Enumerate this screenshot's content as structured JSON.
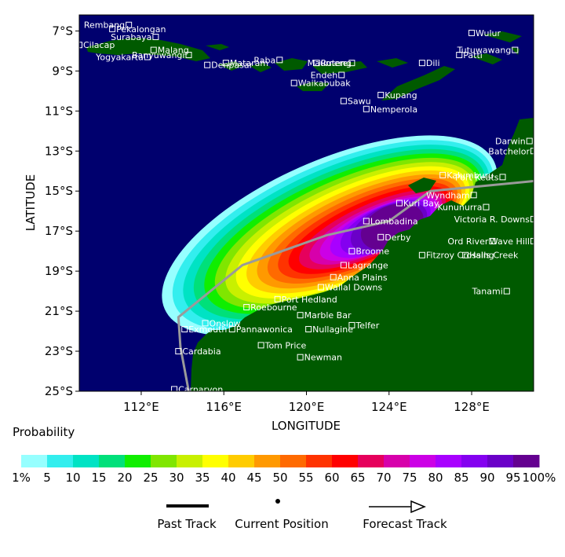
{
  "map": {
    "x_axis_title": "LONGITUDE",
    "y_axis_title": "LATITUDE",
    "lon_range": [
      109,
      131
    ],
    "lat_range": [
      -25,
      -6.2
    ],
    "lon_ticks": [
      {
        "value": 112,
        "label": "112°E"
      },
      {
        "value": 116,
        "label": "116°E"
      },
      {
        "value": 120,
        "label": "120°E"
      },
      {
        "value": 124,
        "label": "124°E"
      },
      {
        "value": 128,
        "label": "128°E"
      }
    ],
    "lat_ticks": [
      {
        "value": -7,
        "label": "7°S"
      },
      {
        "value": -9,
        "label": "9°S"
      },
      {
        "value": -11,
        "label": "11°S"
      },
      {
        "value": -13,
        "label": "13°S"
      },
      {
        "value": -15,
        "label": "15°S"
      },
      {
        "value": -17,
        "label": "17°S"
      },
      {
        "value": -19,
        "label": "19°S"
      },
      {
        "value": -21,
        "label": "21°S"
      },
      {
        "value": -23,
        "label": "23°S"
      },
      {
        "value": -25,
        "label": "25°S"
      }
    ],
    "colors": {
      "ocean": "#00006e",
      "land": "#005a00",
      "track": "#9a9a9a",
      "place": "#ffffff"
    },
    "track": [
      [
        131,
        -14.5
      ],
      [
        126,
        -15.0
      ],
      [
        124,
        -16.5
      ],
      [
        121,
        -17.2
      ],
      [
        116.9,
        -18.7
      ],
      [
        113.8,
        -21.3
      ],
      [
        113.9,
        -22.8
      ],
      [
        114.3,
        -25
      ]
    ],
    "places": [
      {
        "name": "Rembang",
        "lon": 111.4,
        "lat": -6.7,
        "anchor": "end"
      },
      {
        "name": "Pekalongan",
        "lon": 110.6,
        "lat": -6.9,
        "anchor": "start"
      },
      {
        "name": "Surabaya",
        "lon": 112.7,
        "lat": -7.3,
        "anchor": "end"
      },
      {
        "name": "Cilacap",
        "lon": 109.0,
        "lat": -7.7,
        "anchor": "start"
      },
      {
        "name": "Malang",
        "lon": 112.6,
        "lat": -7.95,
        "anchor": "start"
      },
      {
        "name": "Yogyakarta",
        "lon": 112.3,
        "lat": -8.3,
        "anchor": "end"
      },
      {
        "name": "Banyuwangi",
        "lon": 114.3,
        "lat": -8.2,
        "anchor": "end"
      },
      {
        "name": "Mataram",
        "lon": 116.1,
        "lat": -8.6,
        "anchor": "start"
      },
      {
        "name": "Raba",
        "lon": 118.7,
        "lat": -8.45,
        "anchor": "end"
      },
      {
        "name": "Denpasar",
        "lon": 115.2,
        "lat": -8.7,
        "anchor": "start"
      },
      {
        "name": "Maumere",
        "lon": 122.2,
        "lat": -8.6,
        "anchor": "end"
      },
      {
        "name": "Ruteng",
        "lon": 120.5,
        "lat": -8.6,
        "anchor": "start"
      },
      {
        "name": "Endeh",
        "lon": 121.7,
        "lat": -9.2,
        "anchor": "end"
      },
      {
        "name": "Waikabubak",
        "lon": 119.4,
        "lat": -9.6,
        "anchor": "start"
      },
      {
        "name": "Sawu",
        "lon": 121.8,
        "lat": -10.5,
        "anchor": "start"
      },
      {
        "name": "Kupang",
        "lon": 123.6,
        "lat": -10.2,
        "anchor": "start"
      },
      {
        "name": "Nemperola",
        "lon": 122.9,
        "lat": -10.9,
        "anchor": "start"
      },
      {
        "name": "Dili",
        "lon": 125.6,
        "lat": -8.6,
        "anchor": "start"
      },
      {
        "name": "Wulur",
        "lon": 128.0,
        "lat": -7.1,
        "anchor": "start"
      },
      {
        "name": "Tutuwawang",
        "lon": 130.1,
        "lat": -7.95,
        "anchor": "end"
      },
      {
        "name": "Patti",
        "lon": 127.4,
        "lat": -8.2,
        "anchor": "start"
      },
      {
        "name": "Darwin",
        "lon": 130.8,
        "lat": -12.5,
        "anchor": "end"
      },
      {
        "name": "Batchelor",
        "lon": 131.0,
        "lat": -13.0,
        "anchor": "end"
      },
      {
        "name": "Kalumburu",
        "lon": 126.6,
        "lat": -14.2,
        "anchor": "start"
      },
      {
        "name": "Port Keats",
        "lon": 129.5,
        "lat": -14.3,
        "anchor": "end"
      },
      {
        "name": "Wyndham",
        "lon": 128.1,
        "lat": -15.2,
        "anchor": "end"
      },
      {
        "name": "Kuri Bay",
        "lon": 124.5,
        "lat": -15.6,
        "anchor": "start"
      },
      {
        "name": "Kununurra",
        "lon": 128.7,
        "lat": -15.8,
        "anchor": "end"
      },
      {
        "name": "Victoria R. Downs",
        "lon": 131.0,
        "lat": -16.4,
        "anchor": "end"
      },
      {
        "name": "Lombadina",
        "lon": 122.9,
        "lat": -16.5,
        "anchor": "start"
      },
      {
        "name": "Derby",
        "lon": 123.6,
        "lat": -17.3,
        "anchor": "start"
      },
      {
        "name": "Ord River",
        "lon": 129.0,
        "lat": -17.5,
        "anchor": "end"
      },
      {
        "name": "Wave Hill",
        "lon": 131.0,
        "lat": -17.5,
        "anchor": "end"
      },
      {
        "name": "Broome",
        "lon": 122.2,
        "lat": -18.0,
        "anchor": "start"
      },
      {
        "name": "Halls Creek",
        "lon": 127.7,
        "lat": -18.2,
        "anchor": "start"
      },
      {
        "name": "Fitzroy Crossing",
        "lon": 125.6,
        "lat": -18.2,
        "anchor": "start"
      },
      {
        "name": "Lagrange",
        "lon": 121.8,
        "lat": -18.7,
        "anchor": "start"
      },
      {
        "name": "Anna Plains",
        "lon": 121.3,
        "lat": -19.3,
        "anchor": "start"
      },
      {
        "name": "Wallal Downs",
        "lon": 120.7,
        "lat": -19.8,
        "anchor": "start"
      },
      {
        "name": "Tanami",
        "lon": 129.7,
        "lat": -20.0,
        "anchor": "end"
      },
      {
        "name": "Port Hedland",
        "lon": 118.6,
        "lat": -20.4,
        "anchor": "start"
      },
      {
        "name": "Roebourne",
        "lon": 117.1,
        "lat": -20.8,
        "anchor": "start"
      },
      {
        "name": "Marble Bar",
        "lon": 119.7,
        "lat": -21.2,
        "anchor": "start"
      },
      {
        "name": "Onslow",
        "lon": 115.1,
        "lat": -21.6,
        "anchor": "start"
      },
      {
        "name": "Telfer",
        "lon": 122.2,
        "lat": -21.7,
        "anchor": "start"
      },
      {
        "name": "Pannawonica",
        "lon": 116.4,
        "lat": -21.9,
        "anchor": "start"
      },
      {
        "name": "Nullagine",
        "lon": 120.1,
        "lat": -21.9,
        "anchor": "start"
      },
      {
        "name": "Exmouth",
        "lon": 114.1,
        "lat": -21.9,
        "anchor": "start"
      },
      {
        "name": "Tom Price",
        "lon": 117.8,
        "lat": -22.7,
        "anchor": "start"
      },
      {
        "name": "Cardabia",
        "lon": 113.8,
        "lat": -23.0,
        "anchor": "start"
      },
      {
        "name": "Newman",
        "lon": 119.7,
        "lat": -23.3,
        "anchor": "start"
      },
      {
        "name": "Carnarvon",
        "lon": 113.6,
        "lat": -24.9,
        "anchor": "start"
      }
    ]
  },
  "legend": {
    "title": "Probability",
    "labels": [
      "1%",
      "5",
      "10",
      "15",
      "20",
      "25",
      "30",
      "35",
      "40",
      "45",
      "50",
      "55",
      "60",
      "65",
      "70",
      "75",
      "80",
      "85",
      "90",
      "95",
      "100%"
    ],
    "colors": [
      "#96ffff",
      "#33eeee",
      "#00e3c4",
      "#00e07a",
      "#10ee00",
      "#80e600",
      "#c8f000",
      "#ffff00",
      "#ffcc00",
      "#ff9900",
      "#ff6a00",
      "#ff3300",
      "#ff0000",
      "#e6005c",
      "#d700ab",
      "#cc00e6",
      "#a800ff",
      "#8400f0",
      "#6a00c8",
      "#640090"
    ],
    "symbols": {
      "past_track": "Past Track",
      "current_position": "Current Position",
      "forecast_track": "Forecast Track"
    }
  }
}
